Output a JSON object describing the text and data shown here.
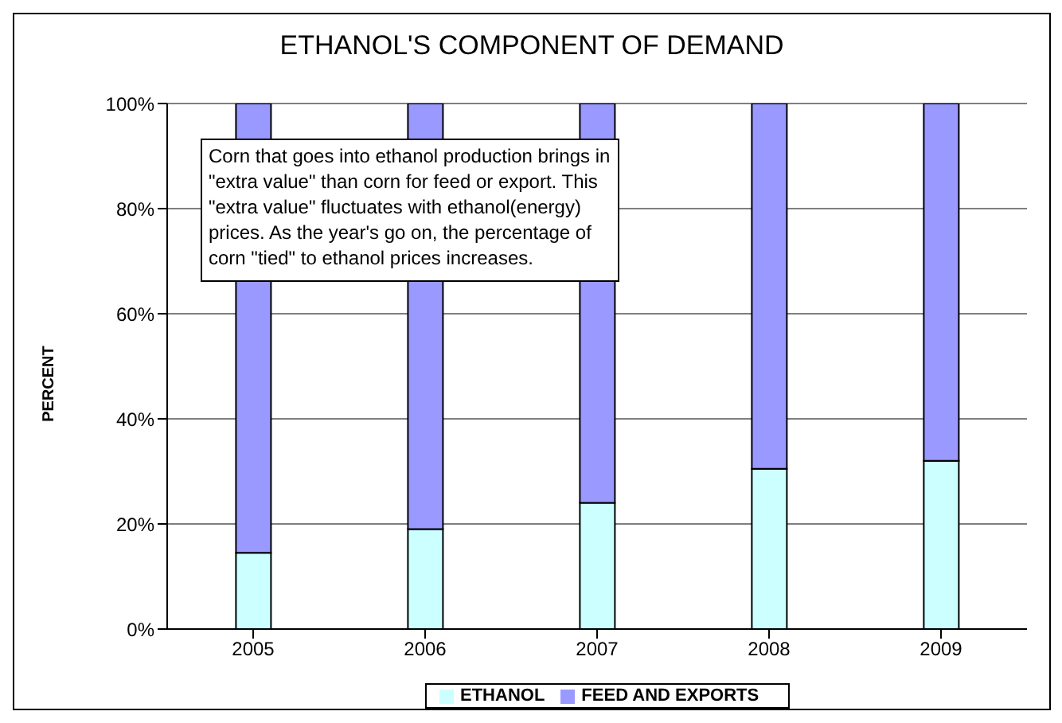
{
  "chart_data": {
    "type": "bar",
    "title": "ETHANOL'S COMPONENT OF DEMAND",
    "ylabel": "PERCENT",
    "categories": [
      "2005",
      "2006",
      "2007",
      "2008",
      "2009"
    ],
    "stacked": true,
    "series": [
      {
        "name": "ETHANOL",
        "color": "#ccffff",
        "values": [
          14.5,
          19,
          24,
          30.5,
          32
        ]
      },
      {
        "name": "FEED AND EXPORTS",
        "color": "#9999ff",
        "values": [
          85.5,
          81,
          76,
          69.5,
          68
        ]
      }
    ],
    "ylim": [
      0,
      100
    ],
    "yticks": [
      {
        "value": 0,
        "label": "0%"
      },
      {
        "value": 20,
        "label": "20%"
      },
      {
        "value": 40,
        "label": "40%"
      },
      {
        "value": 60,
        "label": "60%"
      },
      {
        "value": 80,
        "label": "80%"
      },
      {
        "value": 100,
        "label": "100%"
      }
    ],
    "grid": "y",
    "legend": "bottom",
    "annotations": [
      "Corn that goes into ethanol production brings in \"extra value\" than corn for feed or export. This \"extra value\" fluctuates with ethanol(energy) prices. As the year's go on, the percentage of corn \"tied\" to ethanol prices increases."
    ]
  }
}
